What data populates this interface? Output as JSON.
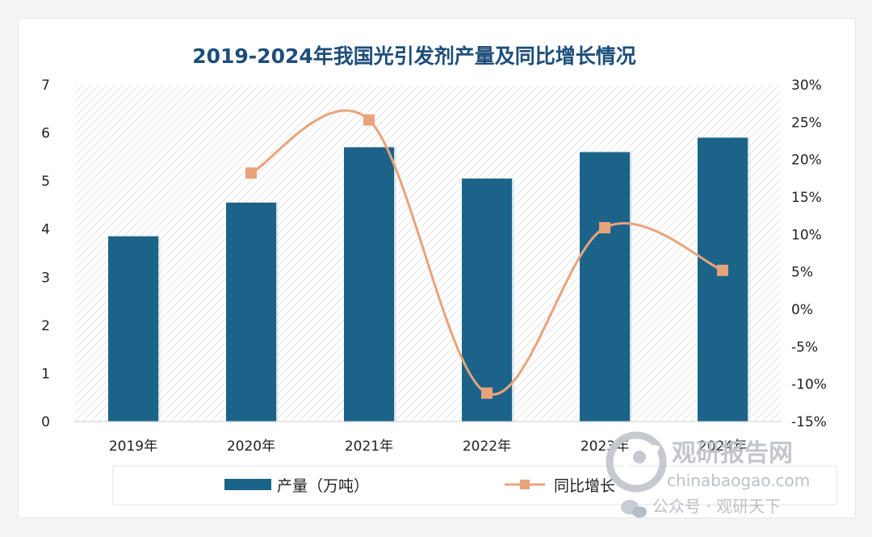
{
  "chart_data": {
    "type": "bar",
    "title": "2019-2024年我国光引发剂产量及同比增长情况",
    "categories": [
      "2019年",
      "2020年",
      "2021年",
      "2022年",
      "2023年",
      "2024年"
    ],
    "series": [
      {
        "name": "产量（万吨）",
        "type": "bar",
        "axis": "left",
        "values": [
          3.85,
          4.55,
          5.7,
          5.05,
          5.6,
          5.9
        ],
        "color": "#1a6389"
      },
      {
        "name": "同比增长",
        "type": "line",
        "axis": "right",
        "values": [
          null,
          18.2,
          25.3,
          -11.2,
          10.9,
          5.2
        ],
        "color": "#e8a37a"
      }
    ],
    "y_left": {
      "min": 0,
      "max": 7,
      "ticks": [
        "0",
        "1",
        "2",
        "3",
        "4",
        "5",
        "6",
        "7"
      ]
    },
    "y_right": {
      "min": -15,
      "max": 30,
      "ticks": [
        "-15%",
        "-10%",
        "-5%",
        "0%",
        "5%",
        "10%",
        "15%",
        "20%",
        "25%",
        "30%"
      ]
    },
    "legend_position": "bottom",
    "grid": false
  },
  "watermark": {
    "brand": "观研报告网",
    "site": "chinabaogao.com",
    "wechat": "公众号 · 观研天下"
  },
  "colors": {
    "bar": "#1a6389",
    "line": "#e8a37a",
    "title": "#1d4e7a",
    "plot_hatch": "#e2e2e2"
  }
}
